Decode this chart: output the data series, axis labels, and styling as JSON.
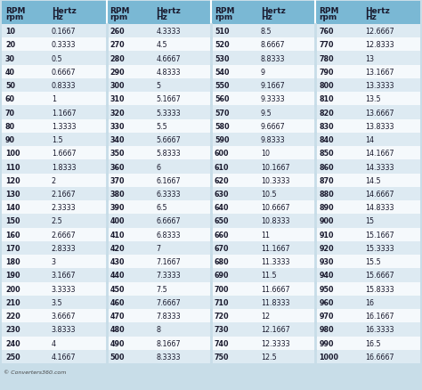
{
  "col1_rpm": [
    10,
    20,
    30,
    40,
    50,
    60,
    70,
    80,
    90,
    100,
    110,
    120,
    130,
    140,
    150,
    160,
    170,
    180,
    190,
    200,
    210,
    220,
    230,
    240,
    250
  ],
  "col1_hz": [
    "0.1667",
    "0.3333",
    "0.5",
    "0.6667",
    "0.8333",
    "1",
    "1.1667",
    "1.3333",
    "1.5",
    "1.6667",
    "1.8333",
    "2",
    "2.1667",
    "2.3333",
    "2.5",
    "2.6667",
    "2.8333",
    "3",
    "3.1667",
    "3.3333",
    "3.5",
    "3.6667",
    "3.8333",
    "4",
    "4.1667"
  ],
  "col2_rpm": [
    260,
    270,
    280,
    290,
    300,
    310,
    320,
    330,
    340,
    350,
    360,
    370,
    380,
    390,
    400,
    410,
    420,
    430,
    440,
    450,
    460,
    470,
    480,
    490,
    500
  ],
  "col2_hz": [
    "4.3333",
    "4.5",
    "4.6667",
    "4.8333",
    "5",
    "5.1667",
    "5.3333",
    "5.5",
    "5.6667",
    "5.8333",
    "6",
    "6.1667",
    "6.3333",
    "6.5",
    "6.6667",
    "6.8333",
    "7",
    "7.1667",
    "7.3333",
    "7.5",
    "7.6667",
    "7.8333",
    "8",
    "8.1667",
    "8.3333"
  ],
  "col3_rpm": [
    510,
    520,
    530,
    540,
    550,
    560,
    570,
    580,
    590,
    600,
    610,
    620,
    630,
    640,
    650,
    660,
    670,
    680,
    690,
    700,
    710,
    720,
    730,
    740,
    750
  ],
  "col3_hz": [
    "8.5",
    "8.6667",
    "8.8333",
    "9",
    "9.1667",
    "9.3333",
    "9.5",
    "9.6667",
    "9.8333",
    "10",
    "10.1667",
    "10.3333",
    "10.5",
    "10.6667",
    "10.8333",
    "11",
    "11.1667",
    "11.3333",
    "11.5",
    "11.6667",
    "11.8333",
    "12",
    "12.1667",
    "12.3333",
    "12.5"
  ],
  "col4_rpm": [
    760,
    770,
    780,
    790,
    800,
    810,
    820,
    830,
    840,
    850,
    860,
    870,
    880,
    890,
    900,
    910,
    920,
    930,
    940,
    950,
    960,
    970,
    980,
    990,
    1000
  ],
  "col4_hz": [
    "12.6667",
    "12.8333",
    "13",
    "13.1667",
    "13.3333",
    "13.5",
    "13.6667",
    "13.8333",
    "14",
    "14.1667",
    "14.3333",
    "14.5",
    "14.6667",
    "14.8333",
    "15",
    "15.1667",
    "15.3333",
    "15.5",
    "15.6667",
    "15.8333",
    "16",
    "16.1667",
    "16.3333",
    "16.5",
    "16.6667"
  ],
  "header_bg": "#7ab8d4",
  "row_bg_light": "#ddeaf2",
  "row_bg_white": "#f5f9fc",
  "outer_bg": "#c8dde8",
  "header_text_color": "#1a1a2e",
  "data_rpm_color": "#1a1a2e",
  "data_hz_color": "#1a1a2e",
  "divider_color": "#aaccdd",
  "footer_text": "© Converters360.com",
  "col_header_rpm1": "RPM",
  "col_header_rpm2": "rpm",
  "col_header_hz1": "Hertz",
  "col_header_hz2": "Hz"
}
